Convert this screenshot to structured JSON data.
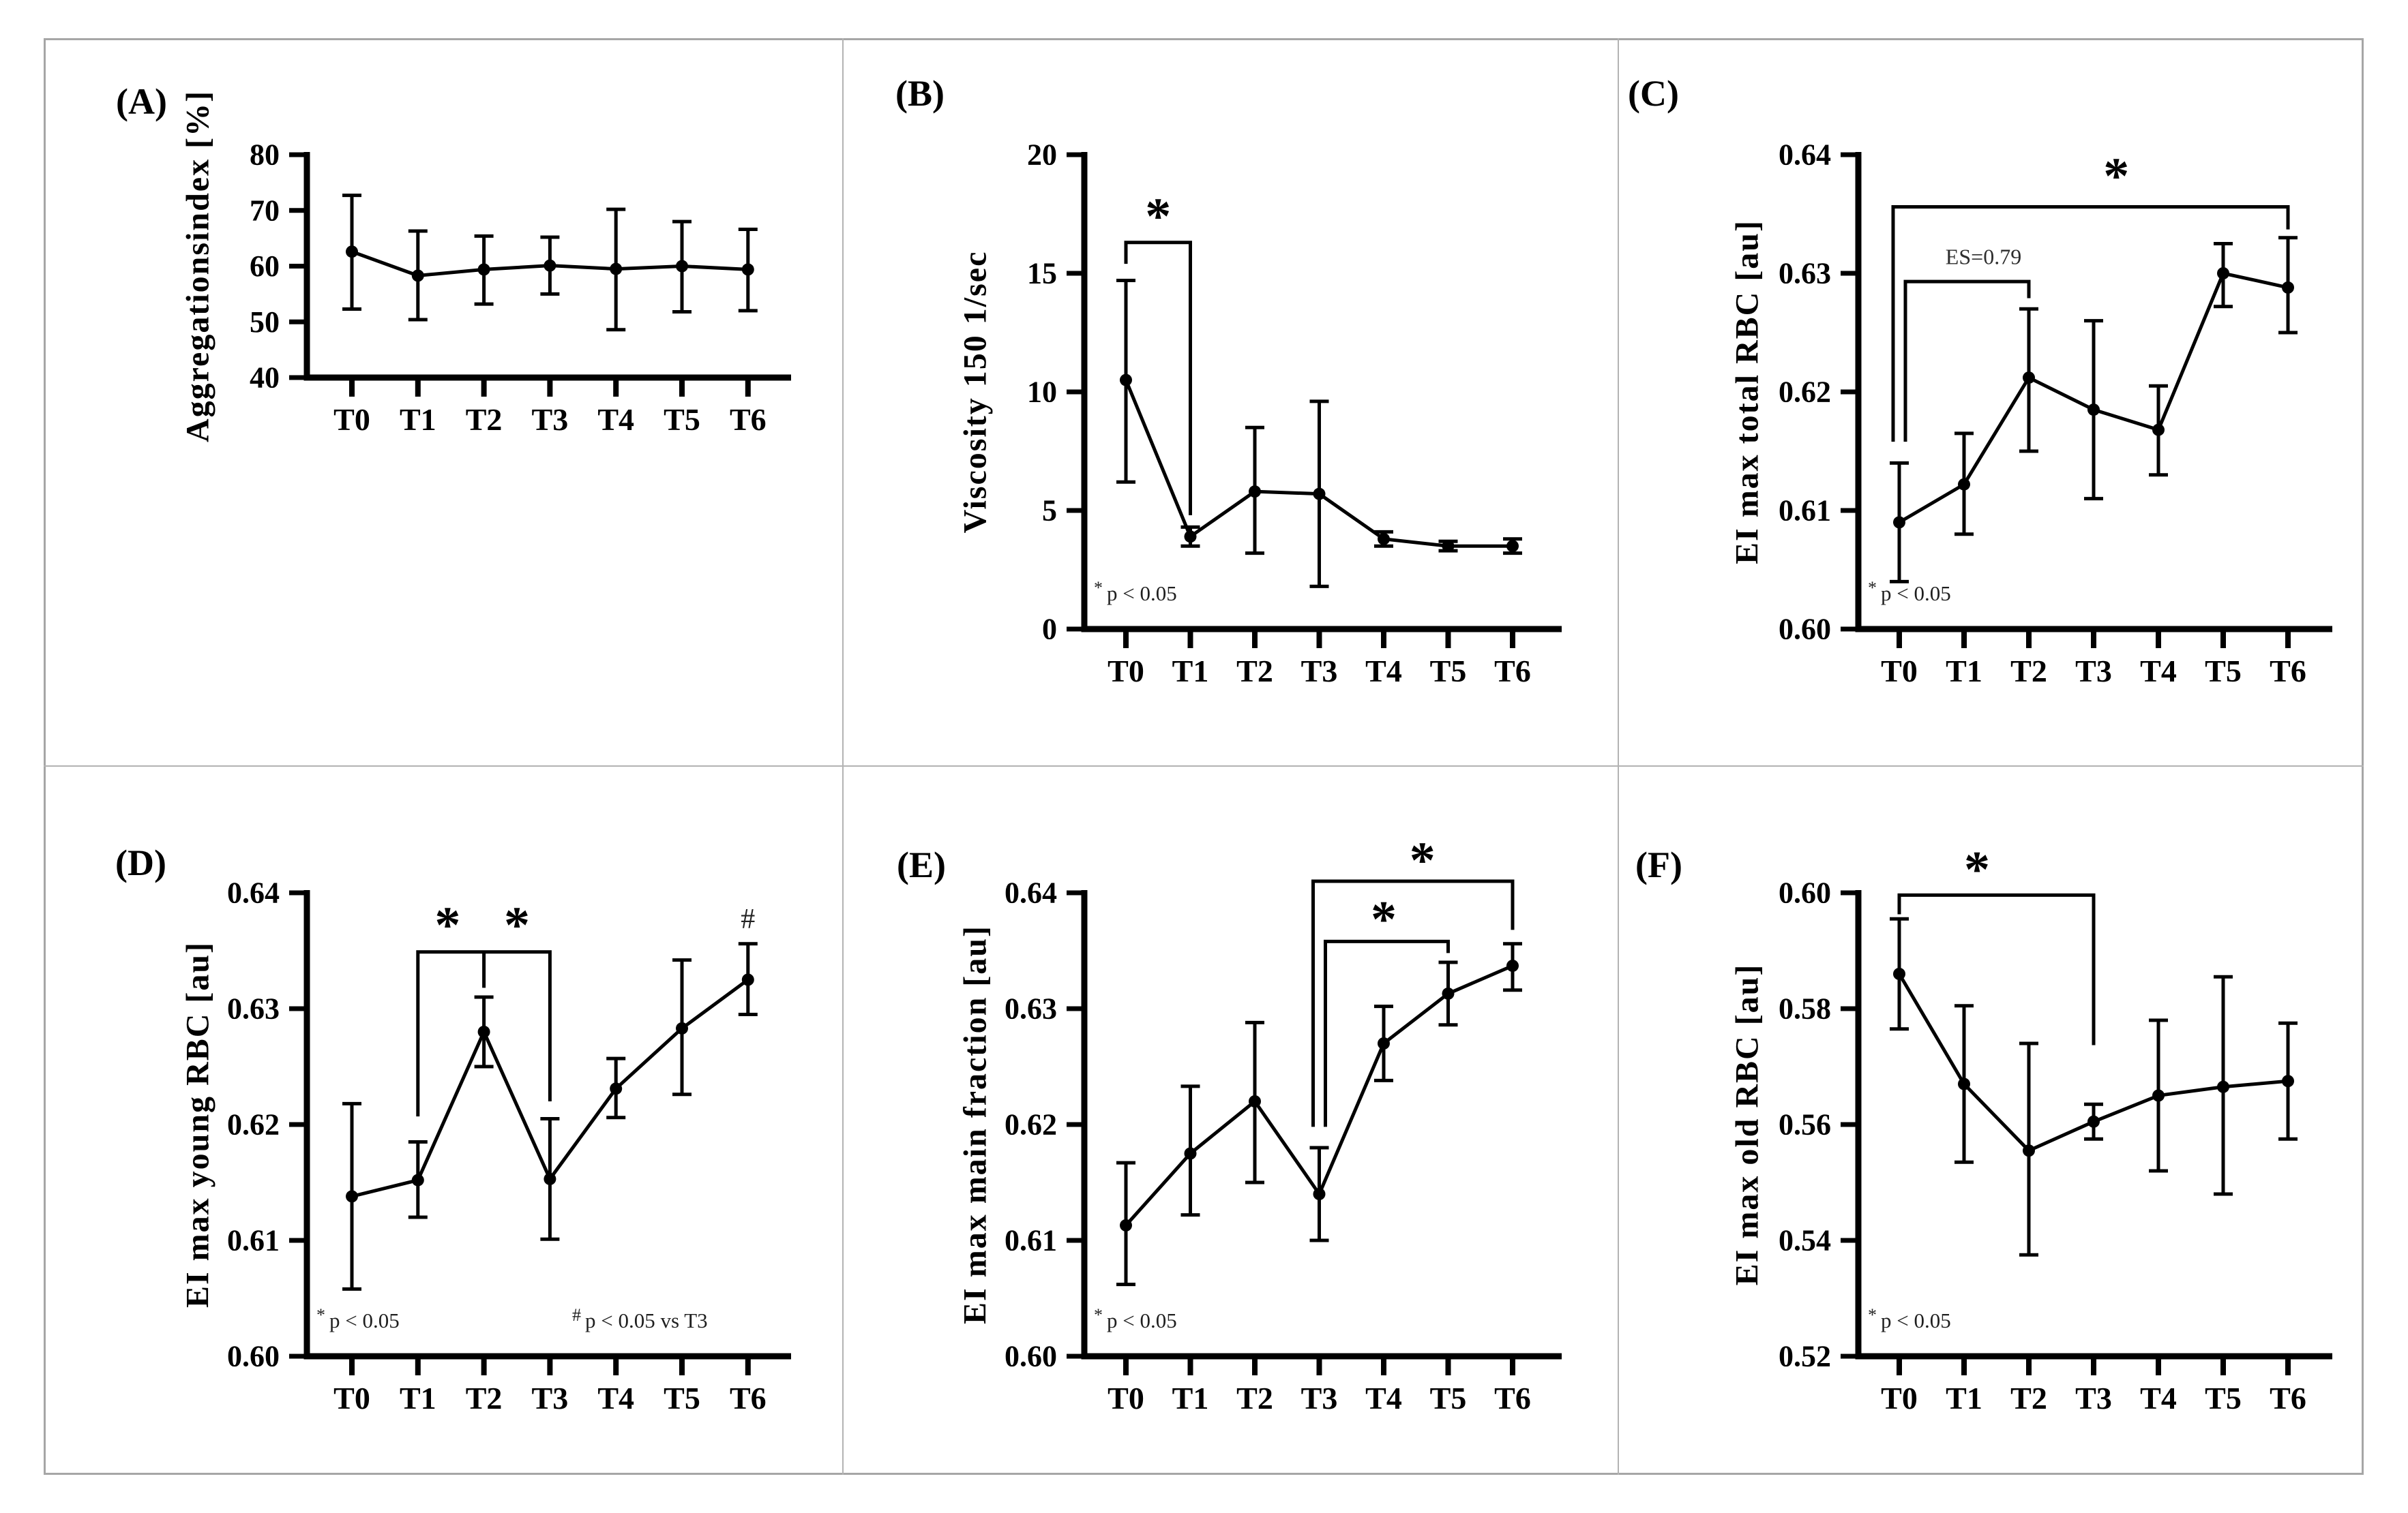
{
  "figure": {
    "colors": {
      "frame": "#a6a6a6",
      "divider": "#b3b3b3",
      "ink": "#000000",
      "footnote_ink": "#1f1f1f",
      "annotation_ink": "#2e2e2e"
    }
  },
  "chart_data": [
    {
      "type": "line",
      "panel": "(A)",
      "ylabel": "Aggregationsindex [%]",
      "ylim": [
        40,
        80
      ],
      "yticks": [
        {
          "v": 40,
          "label": "40"
        },
        {
          "v": 50,
          "label": "50"
        },
        {
          "v": 60,
          "label": "60"
        },
        {
          "v": 70,
          "label": "70"
        },
        {
          "v": 80,
          "label": "80"
        }
      ],
      "categories": [
        "T0",
        "T1",
        "T2",
        "T3",
        "T4",
        "T5",
        "T6"
      ],
      "values": [
        62.6,
        58.3,
        59.4,
        60.1,
        59.5,
        60.0,
        59.4
      ],
      "err_low": [
        52.3,
        50.4,
        53.2,
        55.0,
        48.6,
        51.8,
        52.0
      ],
      "err_high": [
        72.7,
        66.3,
        65.4,
        65.2,
        70.2,
        68.0,
        66.6
      ],
      "brackets": [],
      "annotations": [],
      "footnotes": []
    },
    {
      "type": "line",
      "panel": "(B)",
      "ylabel": "Viscosity 150 1/sec",
      "ylim": [
        0,
        20
      ],
      "yticks": [
        {
          "v": 0,
          "label": "0"
        },
        {
          "v": 5,
          "label": "5"
        },
        {
          "v": 10,
          "label": "10"
        },
        {
          "v": 15,
          "label": "15"
        },
        {
          "v": 20,
          "label": "20"
        }
      ],
      "categories": [
        "T0",
        "T1",
        "T2",
        "T3",
        "T4",
        "T5",
        "T6"
      ],
      "values": [
        10.5,
        3.9,
        5.8,
        5.7,
        3.8,
        3.5,
        3.5
      ],
      "err_low": [
        6.2,
        3.5,
        3.2,
        1.8,
        3.5,
        3.3,
        3.2
      ],
      "err_high": [
        14.7,
        4.3,
        8.5,
        9.6,
        4.1,
        3.7,
        3.8
      ],
      "brackets": [
        {
          "from": 0,
          "to": 1,
          "y": 16.3,
          "from_drop": 15.4,
          "to_drop": 4.8,
          "from_dx": 0,
          "to_dx": 0,
          "mid_ticks": [],
          "stars": [
            {
              "at": 0.5,
              "y": 17.4
            }
          ],
          "label": null
        }
      ],
      "annotations": [],
      "footnotes": [
        {
          "marker": "*",
          "text": "p < 0.05"
        }
      ]
    },
    {
      "type": "line",
      "panel": "(C)",
      "ylabel": "EI max total  RBC [au]",
      "ylim": [
        0.6,
        0.64
      ],
      "yticks": [
        {
          "v": 0.6,
          "label": "0.60"
        },
        {
          "v": 0.61,
          "label": "0.61"
        },
        {
          "v": 0.62,
          "label": "0.62"
        },
        {
          "v": 0.63,
          "label": "0.63"
        },
        {
          "v": 0.64,
          "label": "0.64"
        }
      ],
      "categories": [
        "T0",
        "T1",
        "T2",
        "T3",
        "T4",
        "T5",
        "T6"
      ],
      "values": [
        0.609,
        0.6122,
        0.6212,
        0.6185,
        0.6168,
        0.63,
        0.6288
      ],
      "err_low": [
        0.604,
        0.608,
        0.615,
        0.611,
        0.613,
        0.6272,
        0.625
      ],
      "err_high": [
        0.614,
        0.6165,
        0.627,
        0.626,
        0.6205,
        0.6325,
        0.633
      ],
      "brackets": [
        {
          "from": 0,
          "to": 2,
          "y": 0.6293,
          "from_drop": 0.6158,
          "to_drop": 0.6279,
          "from_dx": 9,
          "to_dx": 0,
          "mid_ticks": [],
          "stars": [],
          "label": {
            "text": "ES=0.79",
            "at": 1.3,
            "y": 0.6314
          }
        },
        {
          "from": 0,
          "to": 6,
          "y": 0.6356,
          "from_drop": 0.6158,
          "to_drop": 0.6337,
          "from_dx": -9,
          "to_dx": 0,
          "mid_ticks": [],
          "stars": [
            {
              "at": 3.35,
              "y": 0.6382
            }
          ],
          "label": null
        }
      ],
      "annotations": [],
      "footnotes": [
        {
          "marker": "*",
          "text": "p < 0.05"
        }
      ]
    },
    {
      "type": "line",
      "panel": "(D)",
      "ylabel": "EI max young  RBC [au]",
      "ylim": [
        0.6,
        0.64
      ],
      "yticks": [
        {
          "v": 0.6,
          "label": "0.60"
        },
        {
          "v": 0.61,
          "label": "0.61"
        },
        {
          "v": 0.62,
          "label": "0.62"
        },
        {
          "v": 0.63,
          "label": "0.63"
        },
        {
          "v": 0.64,
          "label": "0.64"
        }
      ],
      "categories": [
        "T0",
        "T1",
        "T2",
        "T3",
        "T4",
        "T5",
        "T6"
      ],
      "values": [
        0.6138,
        0.6152,
        0.628,
        0.6153,
        0.6231,
        0.6283,
        0.6325
      ],
      "err_low": [
        0.6058,
        0.612,
        0.625,
        0.6101,
        0.6206,
        0.6226,
        0.6295
      ],
      "err_high": [
        0.6218,
        0.6185,
        0.631,
        0.6205,
        0.6257,
        0.6342,
        0.6356
      ],
      "brackets": [
        {
          "from": 1,
          "to": 3,
          "y": 0.6349,
          "from_drop": 0.6207,
          "to_drop": 0.622,
          "from_dx": 0,
          "to_dx": 0,
          "mid_ticks": [
            {
              "at": 2,
              "drop": 0.6318
            }
          ],
          "stars": [
            {
              "at": 1.45,
              "y": 0.6372
            },
            {
              "at": 2.5,
              "y": 0.6372
            }
          ],
          "label": null
        }
      ],
      "annotations": [
        {
          "at": 6,
          "y": 0.6377,
          "text": "#"
        }
      ],
      "footnotes": [
        {
          "marker": "*",
          "text": "p < 0.05"
        },
        {
          "marker": "#",
          "text": "p < 0.05 vs T3"
        }
      ]
    },
    {
      "type": "line",
      "panel": "(E)",
      "ylabel": "EI max main fraction [au]",
      "ylim": [
        0.6,
        0.64
      ],
      "yticks": [
        {
          "v": 0.6,
          "label": "0.60"
        },
        {
          "v": 0.61,
          "label": "0.61"
        },
        {
          "v": 0.62,
          "label": "0.62"
        },
        {
          "v": 0.63,
          "label": "0.63"
        },
        {
          "v": 0.64,
          "label": "0.64"
        }
      ],
      "categories": [
        "T0",
        "T1",
        "T2",
        "T3",
        "T4",
        "T5",
        "T6"
      ],
      "values": [
        0.6113,
        0.6175,
        0.622,
        0.614,
        0.627,
        0.6313,
        0.6337
      ],
      "err_low": [
        0.6062,
        0.6122,
        0.615,
        0.61,
        0.6238,
        0.6286,
        0.6316
      ],
      "err_high": [
        0.6167,
        0.6233,
        0.6288,
        0.618,
        0.6302,
        0.634,
        0.6356
      ],
      "brackets": [
        {
          "from": 3,
          "to": 5,
          "y": 0.6358,
          "from_drop": 0.6198,
          "to_drop": 0.6348,
          "from_dx": 9,
          "to_dx": 0,
          "mid_ticks": [],
          "stars": [
            {
              "at": 4.0,
              "y": 0.6377
            }
          ],
          "label": null
        },
        {
          "from": 3,
          "to": 6,
          "y": 0.641,
          "from_drop": 0.6198,
          "to_drop": 0.6368,
          "from_dx": -9,
          "to_dx": 0,
          "mid_ticks": [],
          "stars": [
            {
              "at": 4.6,
              "y": 0.6428
            }
          ],
          "label": null
        }
      ],
      "annotations": [],
      "footnotes": [
        {
          "marker": "*",
          "text": "p < 0.05"
        }
      ]
    },
    {
      "type": "line",
      "panel": "(F)",
      "ylabel": "EI max old RBC [au]",
      "ylim": [
        0.52,
        0.6
      ],
      "yticks": [
        {
          "v": 0.52,
          "label": "0.52"
        },
        {
          "v": 0.54,
          "label": "0.54"
        },
        {
          "v": 0.56,
          "label": "0.56"
        },
        {
          "v": 0.58,
          "label": "0.58"
        },
        {
          "v": 0.6,
          "label": "0.60"
        }
      ],
      "categories": [
        "T0",
        "T1",
        "T2",
        "T3",
        "T4",
        "T5",
        "T6"
      ],
      "values": [
        0.586,
        0.567,
        0.5555,
        0.5605,
        0.565,
        0.5665,
        0.5675
      ],
      "err_low": [
        0.5765,
        0.5535,
        0.5375,
        0.5575,
        0.552,
        0.548,
        0.5575
      ],
      "err_high": [
        0.5955,
        0.5805,
        0.574,
        0.5635,
        0.578,
        0.5855,
        0.5775
      ],
      "brackets": [
        {
          "from": 0,
          "to": 3,
          "y": 0.5996,
          "from_drop": 0.5963,
          "to_drop": 0.5737,
          "from_dx": 0,
          "to_dx": 0,
          "mid_ticks": [],
          "stars": [
            {
              "at": 1.2,
              "y": 0.604
            }
          ],
          "label": null
        }
      ],
      "annotations": [],
      "footnotes": [
        {
          "marker": "*",
          "text": "p < 0.05"
        }
      ]
    }
  ]
}
